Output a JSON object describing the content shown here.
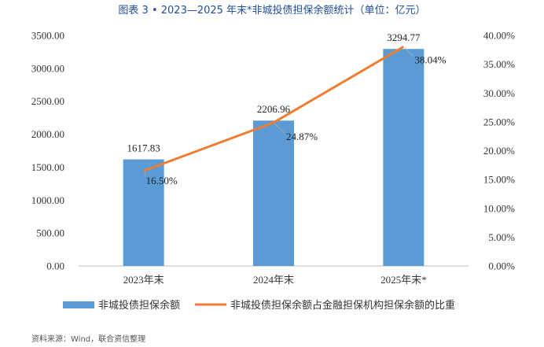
{
  "chart_data": {
    "type": "bar",
    "title": "图表 3 • 2023—2025 年末*非城投债担保余额统计（单位：亿元）",
    "categories": [
      "2023年末",
      "2024年末",
      "2025年末*"
    ],
    "series": [
      {
        "name": "非城投债担保余额",
        "type": "bar",
        "axis": "left",
        "color": "#5b9bd5",
        "values": [
          1617.83,
          2206.96,
          3294.77
        ],
        "labels": [
          "1617.83",
          "2206.96",
          "3294.77"
        ]
      },
      {
        "name": "非城投债担保余额占金融担保机构担保余额的比重",
        "type": "line",
        "axis": "right",
        "color": "#ed7d31",
        "values": [
          16.5,
          24.87,
          38.04
        ],
        "labels": [
          "16.50%",
          "24.87%",
          "38.04%"
        ]
      }
    ],
    "y_left": {
      "ylim": [
        0,
        3500
      ],
      "ticks": [
        "0.00",
        "500.00",
        "1000.00",
        "1500.00",
        "2000.00",
        "2500.00",
        "3000.00",
        "3500.00"
      ]
    },
    "y_right": {
      "ylim": [
        0,
        40
      ],
      "unit": "%",
      "ticks": [
        "0.00%",
        "5.00%",
        "10.00%",
        "15.00%",
        "20.00%",
        "25.00%",
        "30.00%",
        "35.00%",
        "40.00%"
      ]
    },
    "grid": false,
    "legend": "bottom"
  },
  "source": "资料来源：Wind，联合资信整理"
}
